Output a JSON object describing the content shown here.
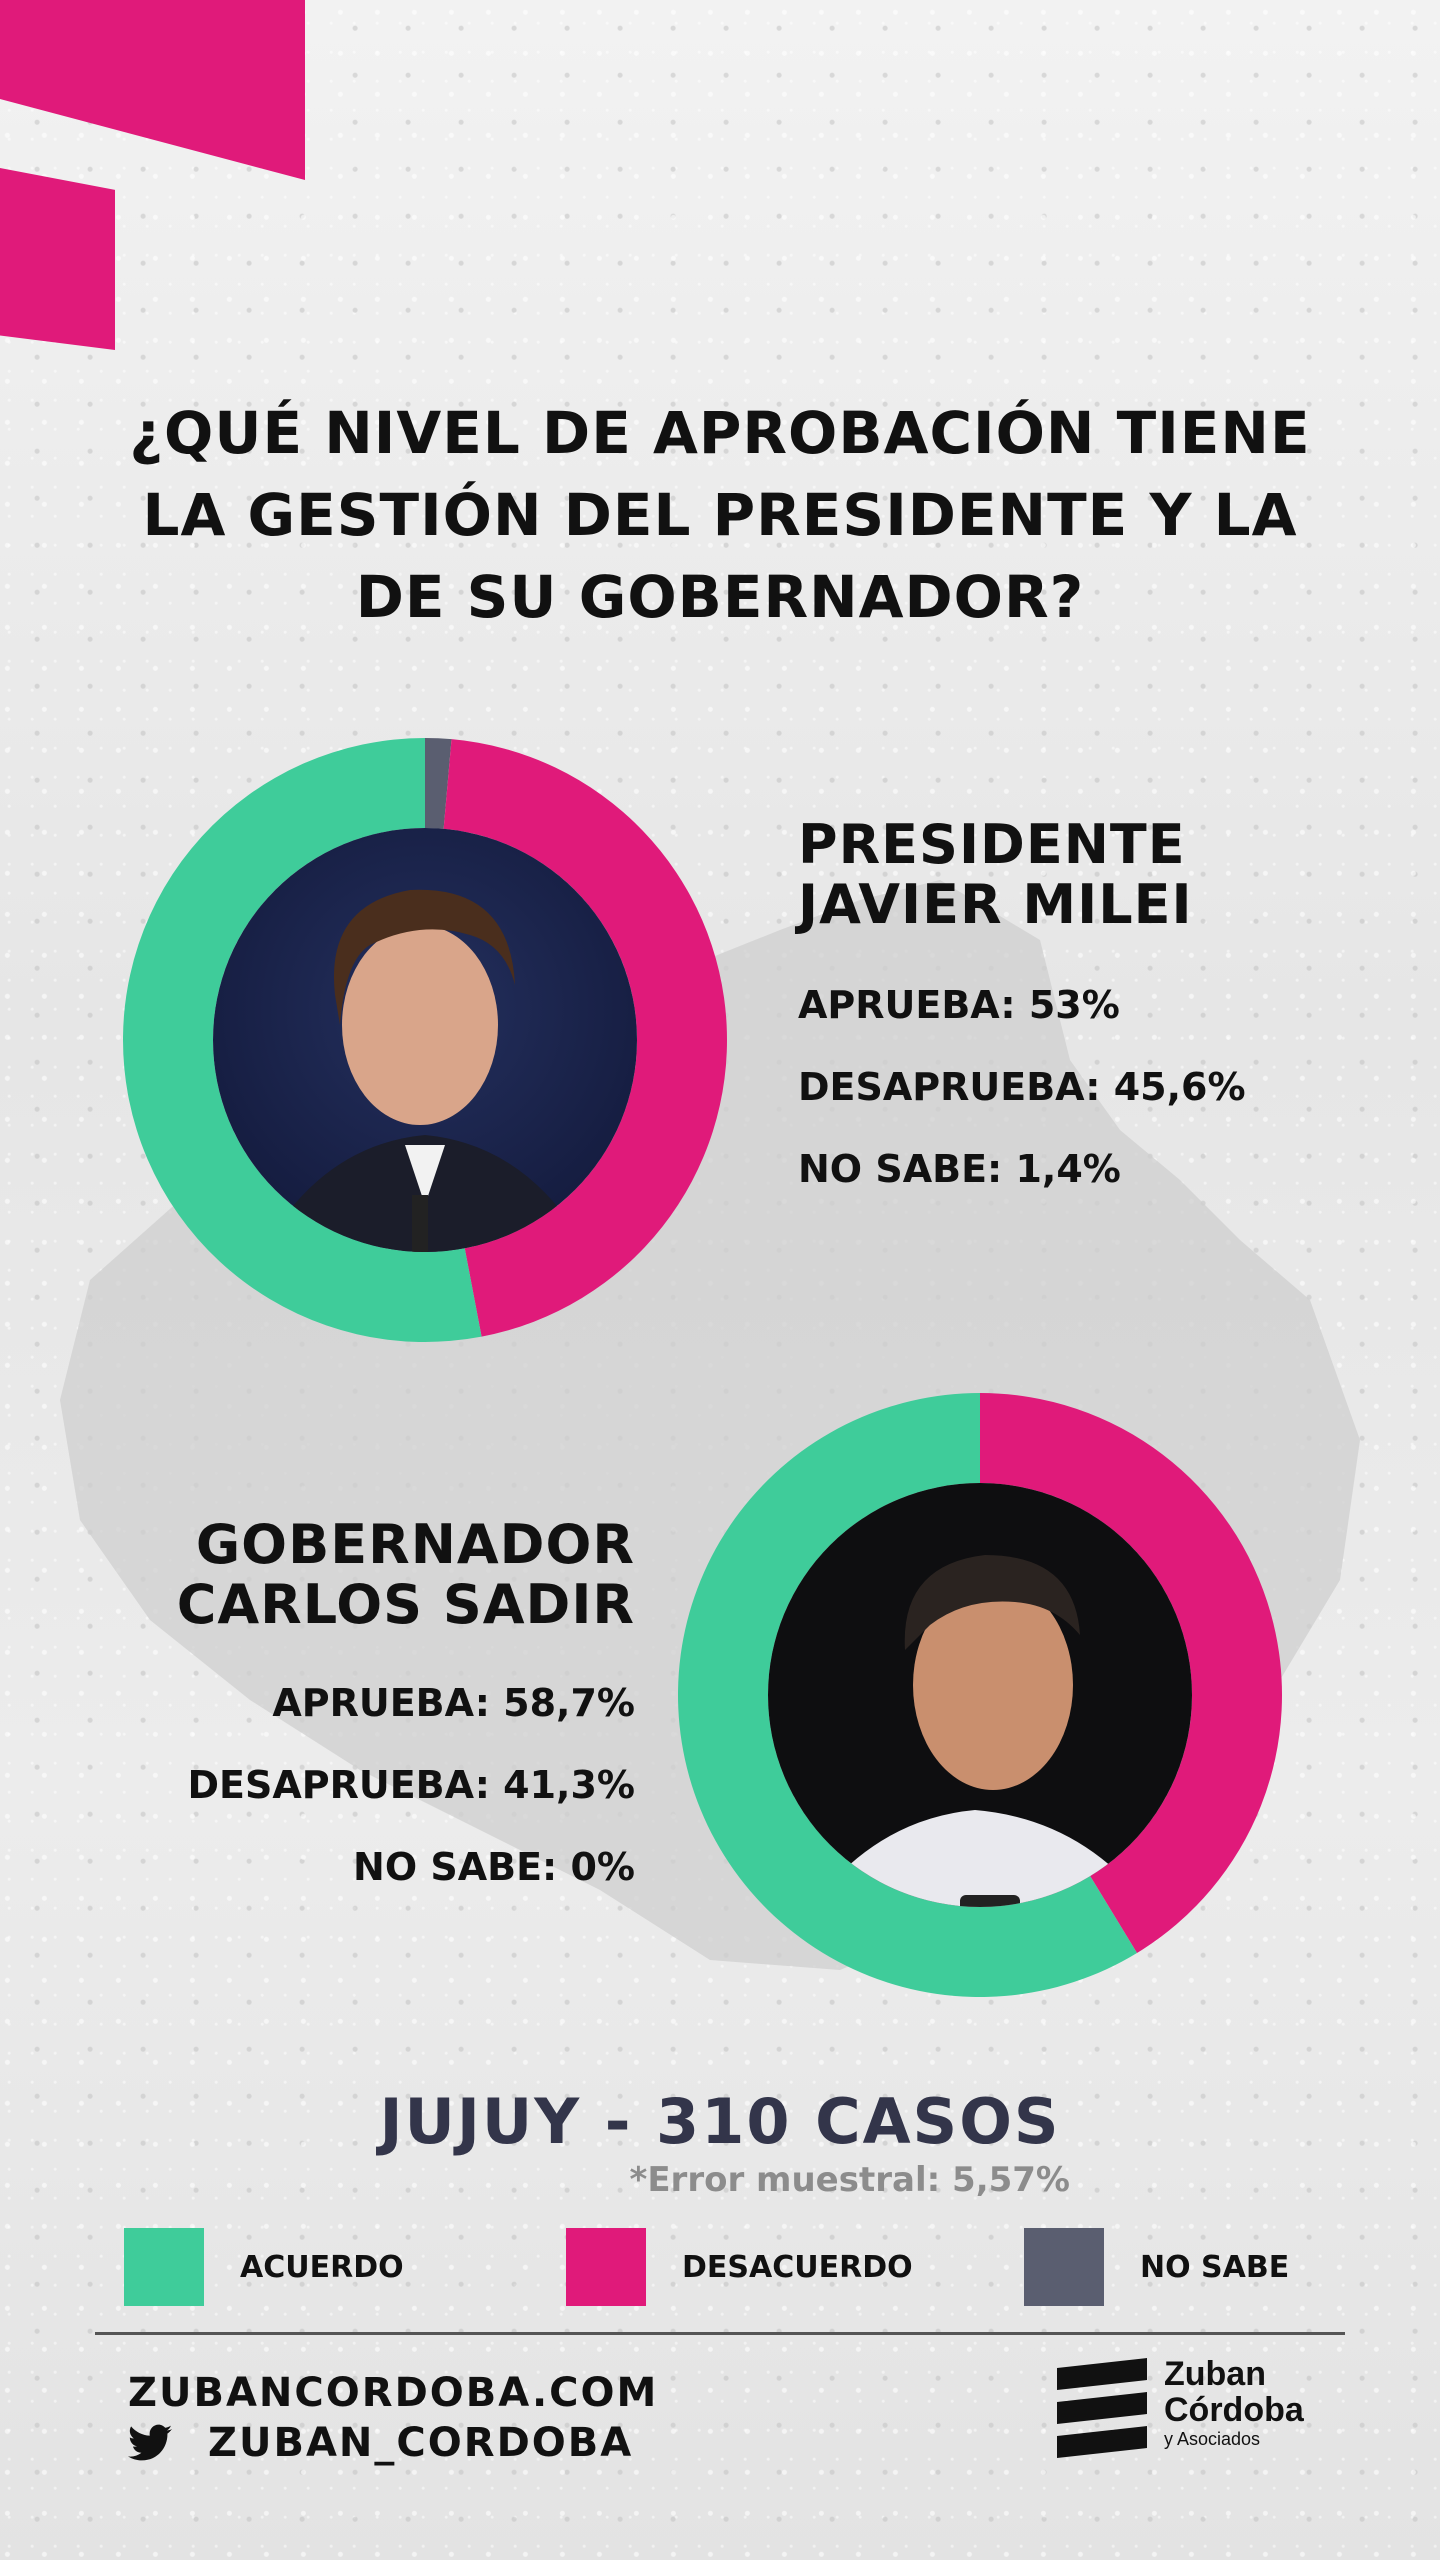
{
  "title": {
    "line1": "¿QUÉ NIVEL DE APROBACIÓN TIENE",
    "line2": "LA GESTIÓN DEL PRESIDENTE Y LA",
    "line3": "DE SU GOBERNADOR?"
  },
  "colors": {
    "acuerdo": "#3fcc9a",
    "desacuerdo": "#e01a7a",
    "no_sabe": "#5a5e70"
  },
  "president": {
    "name_line1": "PRESIDENTE",
    "name_line2": "JAVIER MILEI",
    "aprueba": "APRUEBA: 53%",
    "desaprueba": "DESAPRUEBA: 45,6%",
    "no_sabe": "NO SABE: 1,4%"
  },
  "governor": {
    "name_line1": "GOBERNADOR",
    "name_line2": "CARLOS SADIR",
    "aprueba": "APRUEBA: 58,7%",
    "desaprueba": "DESAPRUEBA: 41,3%",
    "no_sabe": "NO SABE: 0%"
  },
  "chart_data": [
    {
      "type": "pie",
      "title": "PRESIDENTE JAVIER MILEI",
      "categories": [
        "ACUERDO",
        "DESACUERDO",
        "NO SABE"
      ],
      "values": [
        53,
        45.6,
        1.4
      ]
    },
    {
      "type": "pie",
      "title": "GOBERNADOR CARLOS SADIR",
      "categories": [
        "ACUERDO",
        "DESACUERDO",
        "NO SABE"
      ],
      "values": [
        58.7,
        41.3,
        0
      ]
    }
  ],
  "footer": {
    "sample": "JUJUY - 310 CASOS",
    "error": "*Error muestral: 5,57%"
  },
  "legend": {
    "acuerdo": "ACUERDO",
    "desacuerdo": "DESACUERDO",
    "no_sabe": "NO SABE"
  },
  "contact": {
    "website": "ZUBANCORDOBA.COM",
    "twitter": "ZUBAN_CORDOBA",
    "twitter_icon": "twitter-bird-icon"
  },
  "logo": {
    "line1": "Zuban",
    "line2": "Córdoba",
    "line3": "y Asociados"
  }
}
